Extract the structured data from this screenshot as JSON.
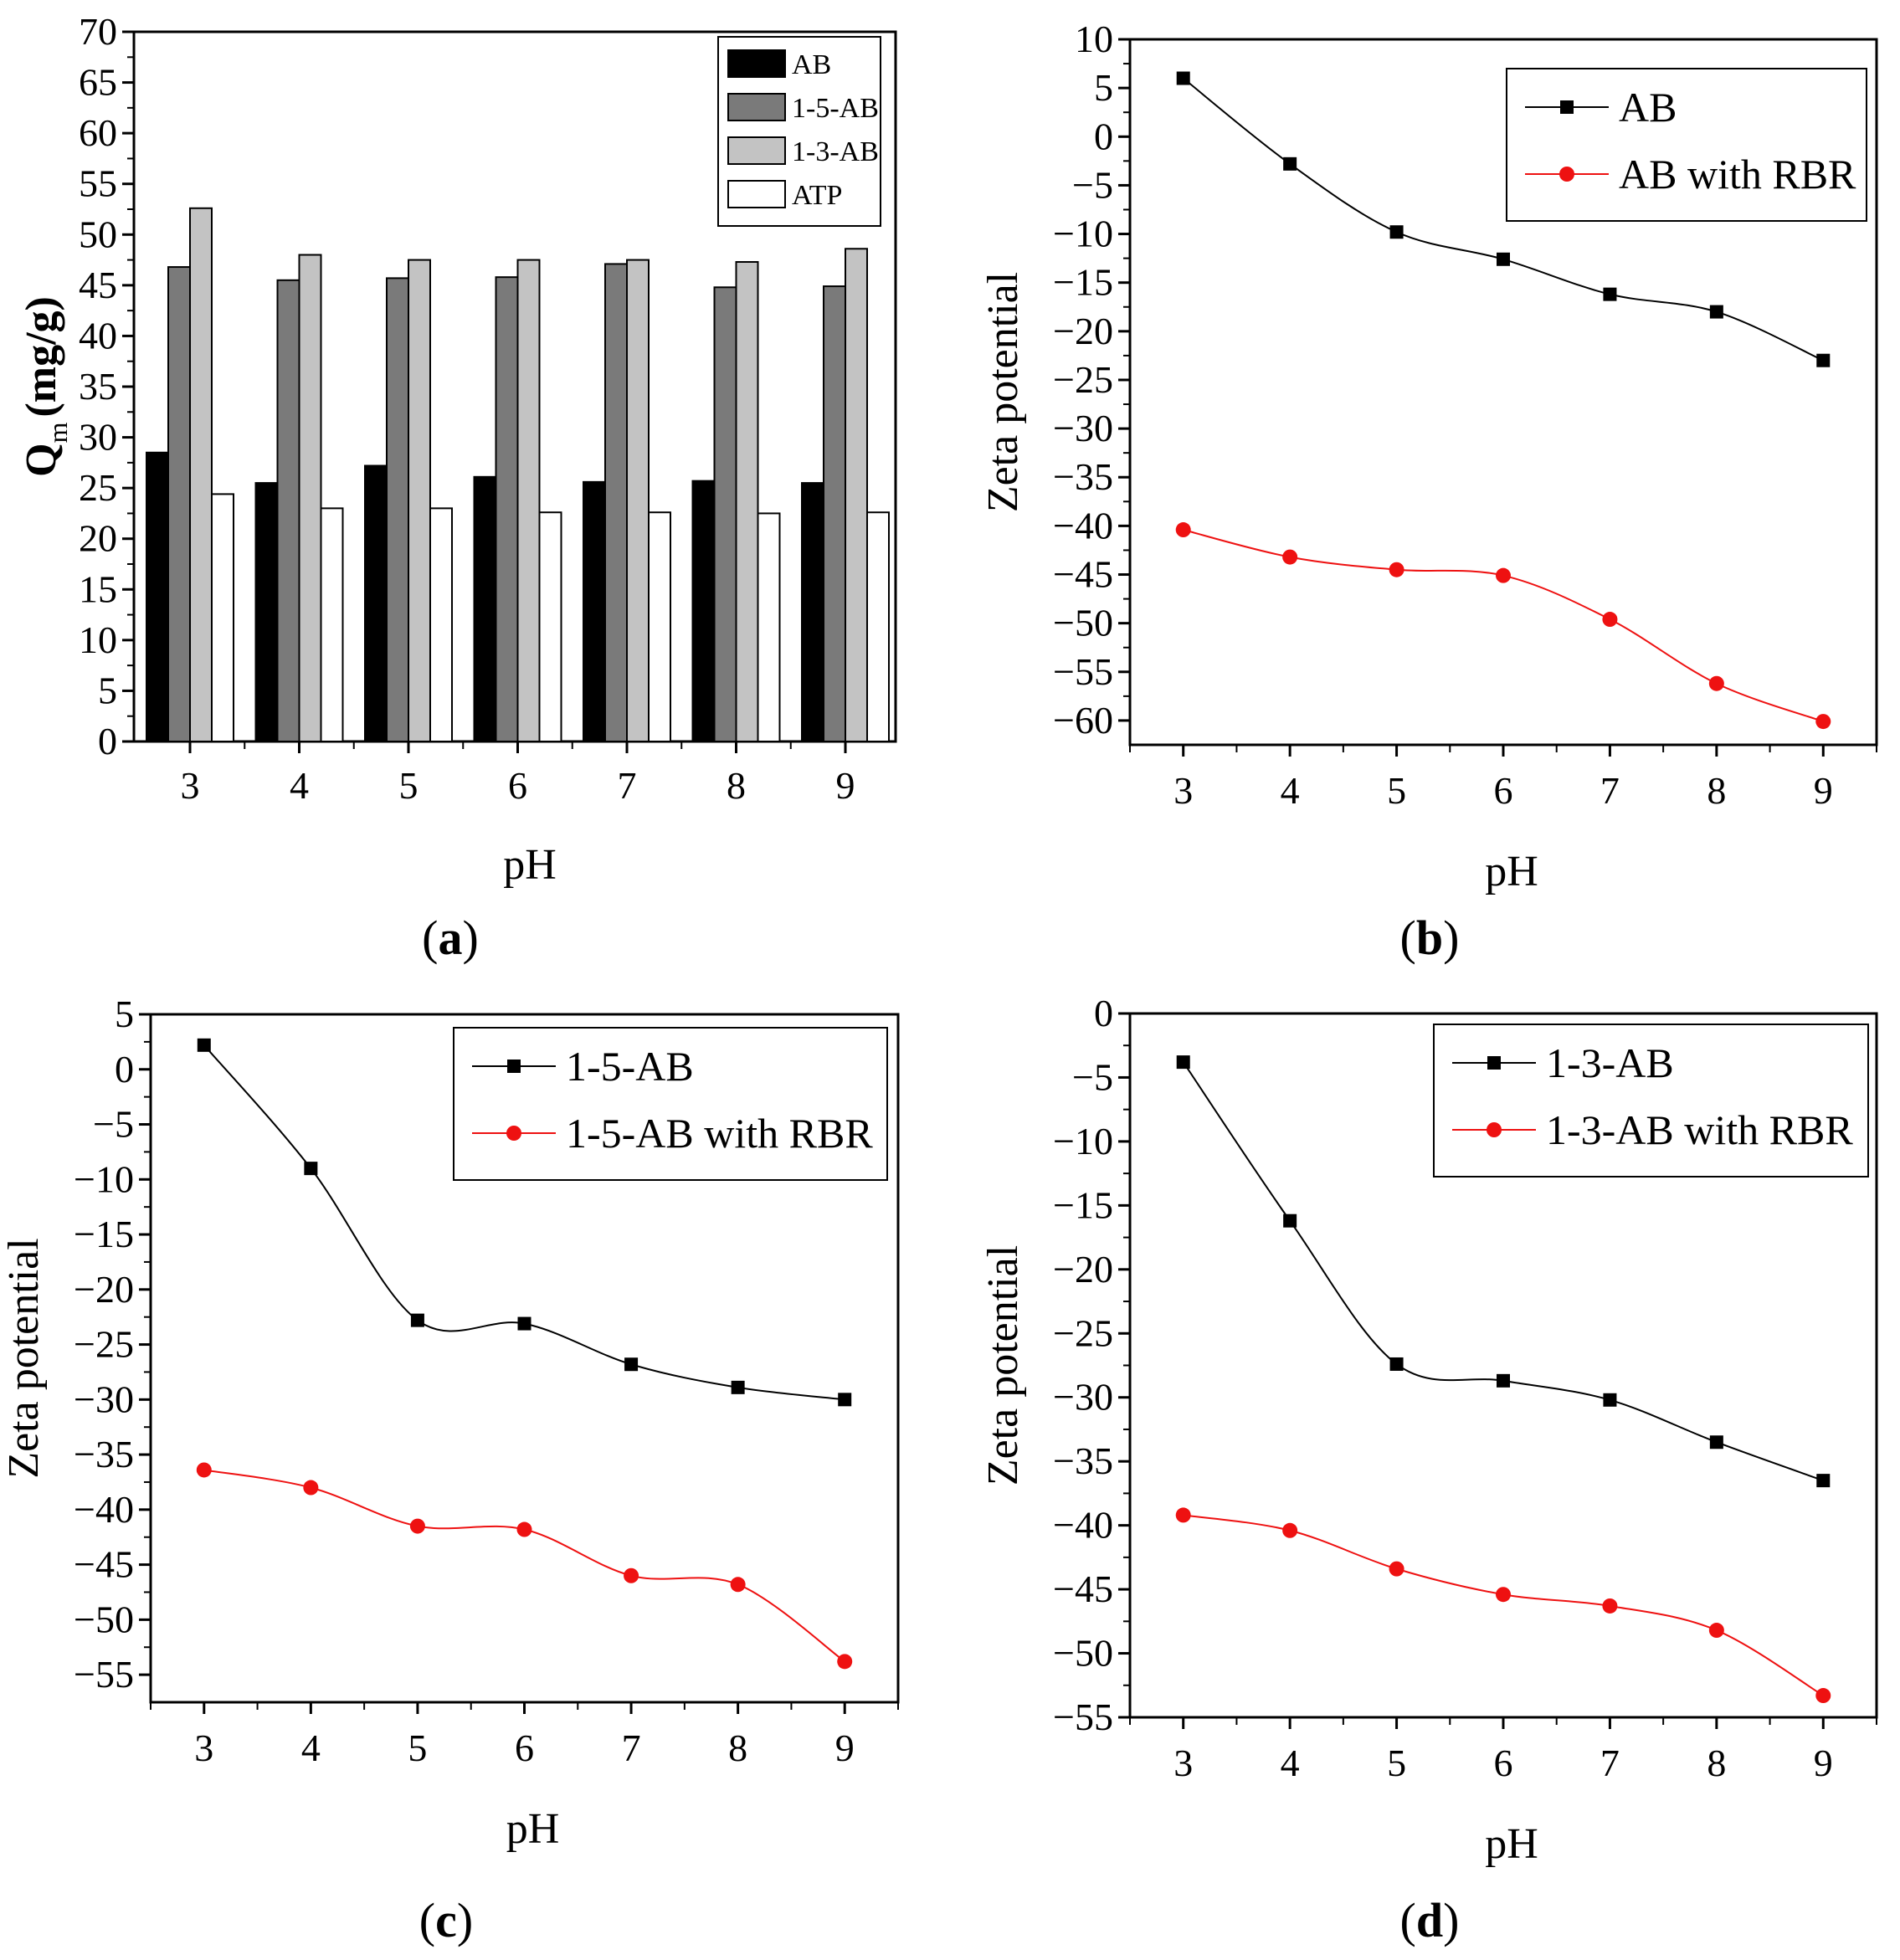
{
  "figure": {
    "panel_labels": [
      {
        "open": "(",
        "letter": "a",
        "close": ")"
      },
      {
        "open": "(",
        "letter": "b",
        "close": ")"
      },
      {
        "open": "(",
        "letter": "c",
        "close": ")"
      },
      {
        "open": "(",
        "letter": "d",
        "close": ")"
      }
    ]
  },
  "colors": {
    "AB": "#000000",
    "1-5-AB": "#7a7a7a",
    "1-3-AB": "#c3c3c3",
    "ATP": "#ffffff",
    "black_series": "#000000",
    "red_series": "#ee1111"
  },
  "chart_data": [
    {
      "id": "a",
      "type": "bar",
      "categories": [
        "3",
        "4",
        "5",
        "6",
        "7",
        "8",
        "9"
      ],
      "series": [
        {
          "name": "AB",
          "values": [
            28.5,
            25.5,
            27.2,
            26.1,
            25.6,
            25.7,
            25.5
          ]
        },
        {
          "name": "1-5-AB",
          "values": [
            46.8,
            45.5,
            45.7,
            45.8,
            47.1,
            44.8,
            44.9
          ]
        },
        {
          "name": "1-3-AB",
          "values": [
            52.6,
            48.0,
            47.5,
            47.5,
            47.5,
            47.3,
            48.6
          ]
        },
        {
          "name": "ATP",
          "values": [
            24.4,
            23.0,
            23.0,
            22.6,
            22.6,
            22.5,
            22.6
          ]
        }
      ],
      "ylabel": "Q",
      "ylabel_sub": "m",
      "ylabel_units": "(mg/g)",
      "xlabel": "pH",
      "ylim": [
        0,
        70
      ],
      "ytick_step": 5,
      "legend": "top-right"
    },
    {
      "id": "b",
      "type": "line",
      "x": [
        3,
        4,
        5,
        6,
        7,
        8,
        9
      ],
      "series": [
        {
          "name": "AB",
          "marker": "square",
          "values": [
            6.0,
            -2.8,
            -9.8,
            -12.6,
            -16.2,
            -18.0,
            -23.0
          ]
        },
        {
          "name": "AB with RBR",
          "marker": "circle",
          "values": [
            -40.4,
            -43.2,
            -44.5,
            -45.1,
            -49.6,
            -56.2,
            -60.1
          ]
        }
      ],
      "xlabel": "pH",
      "ylabel": "Zeta potential",
      "xlim": [
        2.5,
        9.5
      ],
      "ylim": [
        -62.5,
        10
      ],
      "ytick_max": 10,
      "ytick_min": -60,
      "ytick_step": 5,
      "legend": "top-right"
    },
    {
      "id": "c",
      "type": "line",
      "x": [
        3,
        4,
        5,
        6,
        7,
        8,
        9
      ],
      "series": [
        {
          "name": "1-5-AB",
          "marker": "square",
          "values": [
            2.2,
            -9.0,
            -22.8,
            -23.1,
            -26.8,
            -28.9,
            -30.0
          ]
        },
        {
          "name": "1-5-AB with RBR",
          "marker": "circle",
          "values": [
            -36.4,
            -38.0,
            -41.5,
            -41.8,
            -46.0,
            -46.8,
            -53.8
          ]
        }
      ],
      "xlabel": "pH",
      "ylabel": "Zeta potential",
      "xlim": [
        2.5,
        9.5
      ],
      "ylim": [
        -57.5,
        5
      ],
      "ytick_max": 5,
      "ytick_min": -55,
      "ytick_step": 5,
      "legend": "top-right"
    },
    {
      "id": "d",
      "type": "line",
      "x": [
        3,
        4,
        5,
        6,
        7,
        8,
        9
      ],
      "series": [
        {
          "name": "1-3-AB",
          "marker": "square",
          "values": [
            -3.8,
            -16.2,
            -27.4,
            -28.7,
            -30.2,
            -33.5,
            -36.5
          ]
        },
        {
          "name": "1-3-AB with RBR",
          "marker": "circle",
          "values": [
            -39.2,
            -40.4,
            -43.4,
            -45.4,
            -46.3,
            -48.2,
            -53.3
          ]
        }
      ],
      "xlabel": "pH",
      "ylabel": "Zeta potential",
      "xlim": [
        2.5,
        9.5
      ],
      "ylim": [
        -55,
        0
      ],
      "ytick_max": 0,
      "ytick_min": -55,
      "ytick_step": 5,
      "legend": "top-right"
    }
  ]
}
